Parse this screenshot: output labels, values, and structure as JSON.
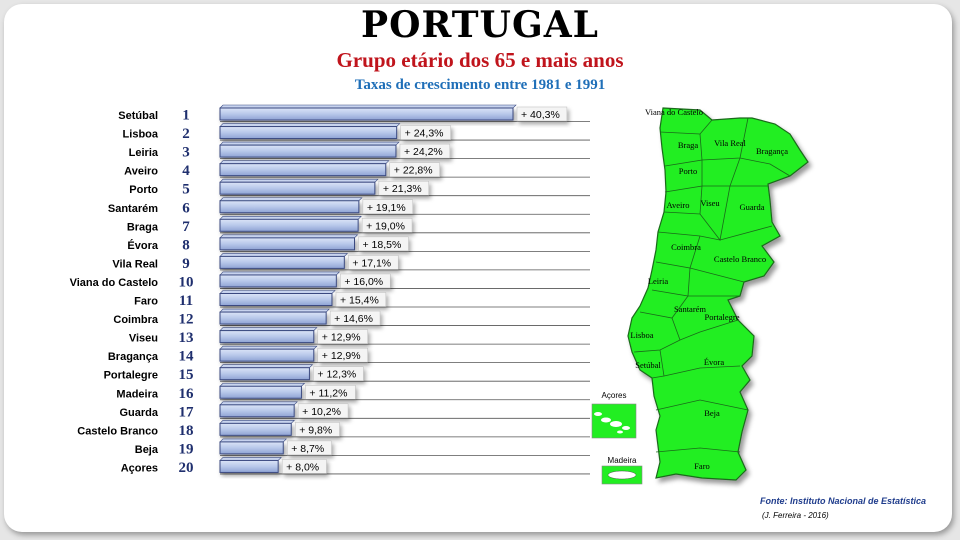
{
  "header": {
    "title": "PORTUGAL",
    "subtitle": "Grupo etário dos 65 e mais anos",
    "caption": "Taxas de crescimento entre 1981 e 1991"
  },
  "chart_data": {
    "type": "bar",
    "orientation": "horizontal",
    "title": "PORTUGAL",
    "subtitle": "Grupo etário dos 65 e mais anos",
    "caption": "Taxas de crescimento entre 1981 e 1991",
    "xlim": [
      0,
      40.3
    ],
    "grid": false,
    "categories": [
      "Setúbal",
      "Lisboa",
      "Leiria",
      "Aveiro",
      "Porto",
      "Santarém",
      "Braga",
      "Évora",
      "Vila Real",
      "Viana do Castelo",
      "Faro",
      "Coimbra",
      "Viseu",
      "Bragança",
      "Portalegre",
      "Madeira",
      "Guarda",
      "Castelo Branco",
      "Beja",
      "Açores"
    ],
    "ranks": [
      "1",
      "2",
      "3",
      "4",
      "5",
      "6",
      "7",
      "8",
      "9",
      "10",
      "11",
      "12",
      "13",
      "14",
      "15",
      "16",
      "17",
      "18",
      "19",
      "20"
    ],
    "values": [
      40.3,
      24.3,
      24.2,
      22.8,
      21.3,
      19.1,
      19.0,
      18.5,
      17.1,
      16.0,
      15.4,
      14.6,
      12.9,
      12.9,
      12.3,
      11.2,
      10.2,
      9.8,
      8.7,
      8.0
    ],
    "labels": [
      "+ 40,3%",
      "+ 24,3%",
      "+ 24,2%",
      "+ 22,8%",
      "+ 21,3%",
      "+ 19,1%",
      "+ 19,0%",
      "+ 18,5%",
      "+ 17,1%",
      "+ 16,0%",
      "+ 15,4%",
      "+ 14,6%",
      "+ 12,9%",
      "+ 12,9%",
      "+ 12,3%",
      "+ 11,2%",
      "+ 10,2%",
      "+ 9,8%",
      "+ 8,7%",
      "+ 8,0%"
    ]
  },
  "map": {
    "districts": [
      "Viana do Castelo",
      "Braga",
      "Vila Real",
      "Bragança",
      "Porto",
      "Aveiro",
      "Viseu",
      "Guarda",
      "Coimbra",
      "Castelo Branco",
      "Leiria",
      "Santarém",
      "Portalegre",
      "Lisboa",
      "Setúbal",
      "Évora",
      "Beja",
      "Faro"
    ],
    "islands": [
      "Açores",
      "Madeira"
    ],
    "fill_color": "#22ee22"
  },
  "footer": {
    "source": "Fonte: Instituto Nacional de Estatística",
    "author": "(J. Ferreira - 2016)"
  },
  "colors": {
    "bar_fill": "#b8c8ea",
    "bar_stroke": "#3a4a80",
    "subtitle": "#c0141c",
    "caption": "#1f6fb8",
    "map_fill": "#22ee22"
  }
}
